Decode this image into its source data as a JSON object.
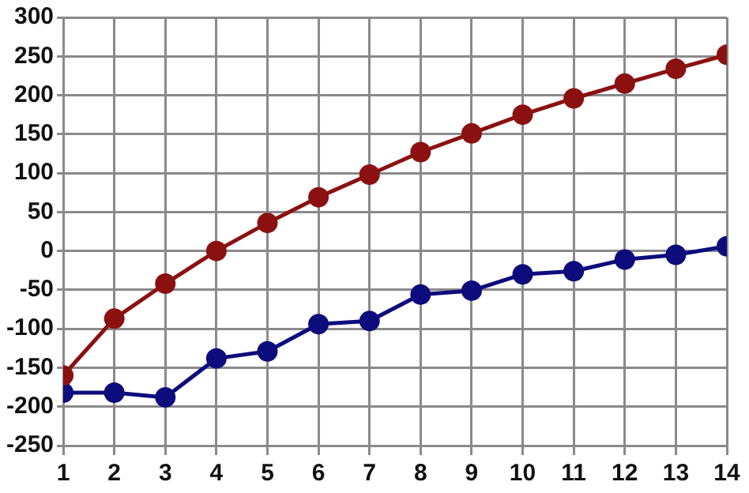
{
  "chart_data": {
    "type": "line",
    "x": [
      1,
      2,
      3,
      4,
      5,
      6,
      7,
      8,
      9,
      10,
      11,
      12,
      13,
      14
    ],
    "series": [
      {
        "color": "#8b1111",
        "values": [
          -160,
          -87,
          -42,
          0,
          36,
          69,
          98,
          127,
          151,
          175,
          196,
          215,
          234,
          252
        ]
      },
      {
        "color": "#0c0c7c",
        "values": [
          -182,
          -182,
          -188,
          -138,
          -129,
          -94,
          -90,
          -56,
          -51,
          -30,
          -26,
          -11,
          -5,
          6
        ]
      }
    ],
    "xlim": [
      1,
      14
    ],
    "xticks": [
      1,
      2,
      3,
      4,
      5,
      6,
      7,
      8,
      9,
      10,
      11,
      12,
      13,
      14
    ],
    "ylim": [
      -250,
      300
    ],
    "yticks": [
      -250,
      -200,
      -150,
      -100,
      -50,
      0,
      50,
      100,
      150,
      200,
      250,
      300
    ],
    "grid": true,
    "marker": "circle",
    "line_style": "solid",
    "legend": false
  }
}
